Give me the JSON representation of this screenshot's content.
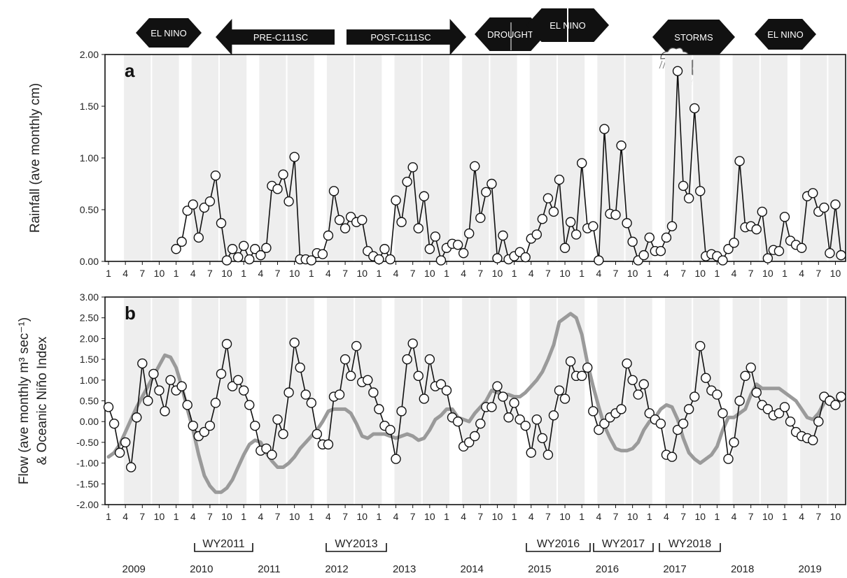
{
  "colors": {
    "band": "#eeeeee",
    "series": "#111111",
    "oni": "#9a9a9a",
    "arrow": "#111111",
    "arrow_text": "#ffffff"
  },
  "events": [
    {
      "label": "EL NINO",
      "shape": "double"
    },
    {
      "label": "PRE-C111SC",
      "shape": "left"
    },
    {
      "label": "POST-C111SC",
      "shape": "right"
    },
    {
      "label": "DROUGHT",
      "shape": "double"
    },
    {
      "label": "EL NINO",
      "shape": "double"
    },
    {
      "label": "STORMS",
      "shape": "double"
    },
    {
      "label": "EL NINO",
      "shape": "double"
    }
  ],
  "icons": [
    "rain-cloud-icon",
    "hurricane-icon"
  ],
  "years": [
    "2009",
    "2010",
    "2011",
    "2012",
    "2013",
    "2014",
    "2015",
    "2016",
    "2017",
    "2018",
    "2019"
  ],
  "water_years": [
    "WY2011",
    "WY2013",
    "WY2016",
    "WY2017",
    "WY2018"
  ],
  "chart_data": [
    {
      "type": "line",
      "panel_label": "a",
      "ylabel": "Rainfall (ave monthly cm)",
      "ylim": [
        0,
        2
      ],
      "yticks": [
        "0.00",
        "0.50",
        "1.00",
        "1.50",
        "2.00"
      ],
      "xticks": [
        "1",
        "4",
        "7",
        "10"
      ],
      "x_start": "2009-01",
      "grid": false,
      "series": [
        {
          "marker": "open-circle",
          "start_month": "2010-01",
          "values": [
            0.12,
            0.19,
            0.49,
            0.55,
            0.23,
            0.52,
            0.58,
            0.83,
            0.37,
            0.01,
            0.12,
            0.04,
            0.15,
            0.02,
            0.12,
            0.06,
            0.13,
            0.73,
            0.7,
            0.84,
            0.58,
            1.01,
            0.02,
            0.02,
            0.01,
            0.08,
            0.07,
            0.25,
            0.68,
            0.4,
            0.32,
            0.43,
            0.38,
            0.4,
            0.1,
            0.05,
            0.02,
            0.12,
            0.02,
            0.59,
            0.38,
            0.77,
            0.91,
            0.32,
            0.63,
            0.12,
            0.24,
            0.01,
            0.13,
            0.17,
            0.16,
            0.08,
            0.27,
            0.92,
            0.42,
            0.67,
            0.75,
            0.03,
            0.25,
            0.02,
            0.05,
            0.09,
            0.04,
            0.22,
            0.26,
            0.41,
            0.61,
            0.48,
            0.79,
            0.13,
            0.38,
            0.26,
            0.95,
            0.32,
            0.34,
            0.01,
            1.28,
            0.46,
            0.45,
            1.12,
            0.37,
            0.19,
            0.01,
            0.06,
            0.23,
            0.1,
            0.1,
            0.23,
            0.34,
            1.84,
            0.73,
            0.61,
            1.48,
            0.68,
            0.05,
            0.07,
            0.05,
            0.01,
            0.12,
            0.18,
            0.97,
            0.33,
            0.34,
            0.31,
            0.48,
            0.03,
            0.11,
            0.1,
            0.43,
            0.2,
            0.16,
            0.13,
            0.63,
            0.66,
            0.48,
            0.52,
            0.08,
            0.55,
            0.06,
            0.24
          ]
        }
      ]
    },
    {
      "type": "line",
      "panel_label": "b",
      "ylabel": "Flow (ave monthly m³ sec⁻¹) & Oceanic Niño Index",
      "ylabel_line1": "Flow (ave monthly m³ sec⁻¹)",
      "ylabel_line2": "& Oceanic Niño Index",
      "ylim": [
        -2,
        3
      ],
      "yticks": [
        "-2.00",
        "-1.50",
        "-1.00",
        "-0.50",
        "0.00",
        "0.50",
        "1.00",
        "1.50",
        "2.00",
        "2.50",
        "3.00"
      ],
      "xticks": [
        "1",
        "4",
        "7",
        "10"
      ],
      "x_start": "2009-01",
      "grid": false,
      "series": [
        {
          "marker": "open-circle",
          "start_month": "2009-01",
          "values": [
            0.35,
            -0.05,
            -0.75,
            -0.5,
            -1.1,
            0.1,
            1.4,
            0.5,
            1.15,
            0.75,
            0.25,
            1.0,
            0.75,
            0.85,
            0.4,
            -0.1,
            -0.35,
            -0.25,
            -0.1,
            0.45,
            1.15,
            1.87,
            0.85,
            1.0,
            0.75,
            0.4,
            -0.1,
            -0.7,
            -0.65,
            -0.8,
            0.05,
            -0.3,
            0.7,
            1.9,
            1.3,
            0.65,
            0.45,
            -0.3,
            -0.55,
            -0.55,
            0.6,
            0.65,
            1.5,
            1.1,
            1.82,
            0.95,
            1.0,
            0.7,
            0.3,
            -0.1,
            -0.2,
            -0.9,
            0.25,
            1.5,
            1.88,
            1.1,
            0.55,
            1.5,
            0.85,
            0.9,
            0.75,
            0.1,
            0.0,
            -0.6,
            -0.5,
            -0.35,
            -0.05,
            0.35,
            0.35,
            0.85,
            0.6,
            0.1,
            0.45,
            0.05,
            -0.1,
            -0.75,
            0.05,
            -0.4,
            -0.8,
            0.15,
            0.75,
            0.55,
            1.45,
            1.1,
            1.1,
            1.3,
            0.25,
            -0.2,
            -0.05,
            0.1,
            0.2,
            0.3,
            1.4,
            1.0,
            0.65,
            0.9,
            0.2,
            0.05,
            -0.05,
            -0.8,
            -0.85,
            -0.2,
            -0.05,
            0.3,
            0.6,
            1.82,
            1.05,
            0.75,
            0.65,
            0.2,
            -0.9,
            -0.5,
            0.5,
            1.1,
            1.3,
            0.7,
            0.4,
            0.3,
            0.15,
            0.2,
            0.35,
            0.0,
            -0.25,
            -0.35,
            -0.4,
            -0.45,
            0.0,
            0.6,
            0.5,
            0.4,
            0.6,
            0.65
          ]
        },
        {
          "line_only": true,
          "start_month": "2009-01",
          "values": [
            -0.85,
            -0.75,
            -0.55,
            -0.25,
            0.05,
            0.35,
            0.6,
            0.85,
            1.1,
            1.35,
            1.6,
            1.55,
            1.3,
            0.85,
            0.3,
            -0.2,
            -0.8,
            -1.3,
            -1.55,
            -1.7,
            -1.7,
            -1.6,
            -1.4,
            -1.1,
            -0.8,
            -0.55,
            -0.45,
            -0.5,
            -0.75,
            -0.95,
            -1.1,
            -1.1,
            -1.0,
            -0.85,
            -0.65,
            -0.5,
            -0.35,
            -0.2,
            0.0,
            0.25,
            0.3,
            0.3,
            0.3,
            0.2,
            -0.05,
            -0.35,
            -0.4,
            -0.3,
            -0.3,
            -0.3,
            -0.35,
            -0.4,
            -0.35,
            -0.3,
            -0.35,
            -0.45,
            -0.4,
            -0.2,
            0.05,
            0.15,
            0.3,
            0.3,
            0.1,
            0.05,
            0.0,
            0.2,
            0.35,
            0.5,
            0.75,
            0.7,
            0.65,
            0.65,
            0.6,
            0.6,
            0.7,
            0.85,
            1.0,
            1.2,
            1.5,
            1.85,
            2.4,
            2.5,
            2.6,
            2.5,
            2.1,
            1.4,
            0.85,
            0.35,
            -0.1,
            -0.4,
            -0.65,
            -0.7,
            -0.7,
            -0.65,
            -0.5,
            -0.2,
            0.0,
            0.1,
            0.3,
            0.4,
            0.35,
            0.05,
            -0.4,
            -0.75,
            -0.9,
            -1.0,
            -0.9,
            -0.8,
            -0.6,
            -0.2,
            0.1,
            0.1,
            0.2,
            0.3,
            0.65,
            0.9,
            0.8,
            0.8,
            0.8,
            0.8,
            0.7,
            0.6,
            0.5,
            0.3,
            0.1,
            0.05,
            0.2,
            0.45,
            0.6,
            0.5,
            0.5,
            0.5
          ]
        }
      ]
    }
  ]
}
